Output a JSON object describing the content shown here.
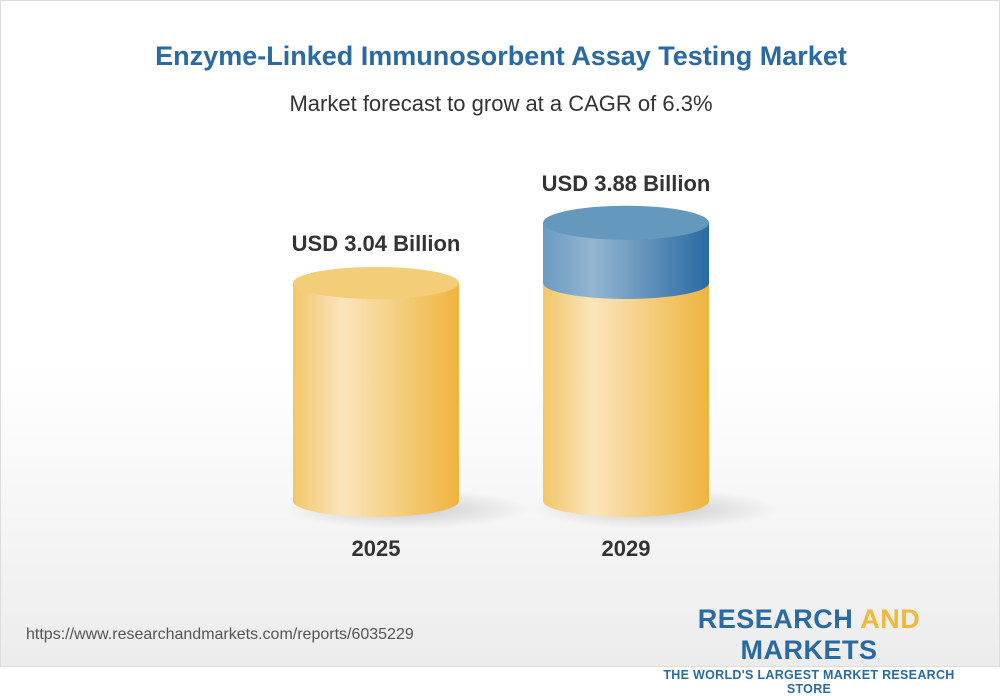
{
  "title": "Enzyme-Linked Immunosorbent Assay Testing Market",
  "subtitle": "Market forecast to grow at a CAGR of 6.3%",
  "chart_data": {
    "type": "bar",
    "categories": [
      "2025",
      "2029"
    ],
    "values": [
      3.04,
      3.88
    ],
    "data_labels": [
      "USD 3.04 Billion",
      "USD 3.88 Billion"
    ],
    "unit": "USD Billion",
    "colors": {
      "base": "#f0b93a",
      "growth": "#2a6aa3"
    }
  },
  "footer": {
    "url": "https://www.researchandmarkets.com/reports/6035229",
    "logo_word1": "RESEARCH",
    "logo_word2": "AND",
    "logo_word3": "MARKETS",
    "tagline": "THE WORLD'S LARGEST MARKET RESEARCH STORE"
  }
}
